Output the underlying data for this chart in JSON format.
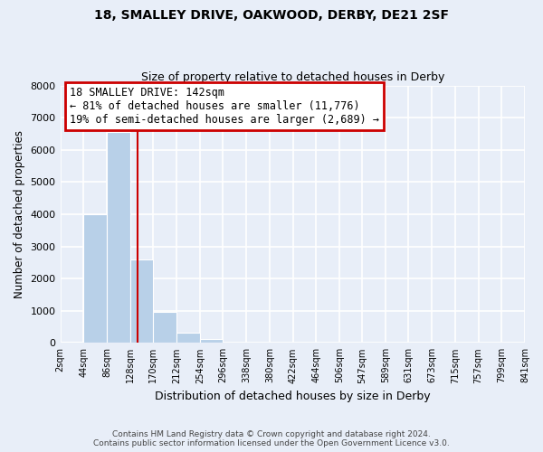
{
  "title1": "18, SMALLEY DRIVE, OAKWOOD, DERBY, DE21 2SF",
  "title2": "Size of property relative to detached houses in Derby",
  "xlabel": "Distribution of detached houses by size in Derby",
  "ylabel": "Number of detached properties",
  "bar_edges": [
    2,
    44,
    86,
    128,
    170,
    212,
    254,
    296,
    338,
    380,
    422,
    464,
    506,
    547,
    589,
    631,
    673,
    715,
    757,
    799,
    841
  ],
  "bar_heights": [
    50,
    4000,
    6550,
    2600,
    960,
    330,
    130,
    0,
    0,
    0,
    0,
    0,
    0,
    0,
    0,
    0,
    0,
    0,
    0,
    0
  ],
  "bar_color": "#b8d0e8",
  "property_line_x": 142,
  "property_line_color": "#cc0000",
  "ylim": [
    0,
    8000
  ],
  "annotation_title": "18 SMALLEY DRIVE: 142sqm",
  "annotation_line1": "← 81% of detached houses are smaller (11,776)",
  "annotation_line2": "19% of semi-detached houses are larger (2,689) →",
  "footer_line1": "Contains HM Land Registry data © Crown copyright and database right 2024.",
  "footer_line2": "Contains public sector information licensed under the Open Government Licence v3.0.",
  "bg_color": "#e8eef8",
  "plot_bg_color": "#e8eef8",
  "grid_color": "#ffffff",
  "tick_labels": [
    "2sqm",
    "44sqm",
    "86sqm",
    "128sqm",
    "170sqm",
    "212sqm",
    "254sqm",
    "296sqm",
    "338sqm",
    "380sqm",
    "422sqm",
    "464sqm",
    "506sqm",
    "547sqm",
    "589sqm",
    "631sqm",
    "673sqm",
    "715sqm",
    "757sqm",
    "799sqm",
    "841sqm"
  ]
}
